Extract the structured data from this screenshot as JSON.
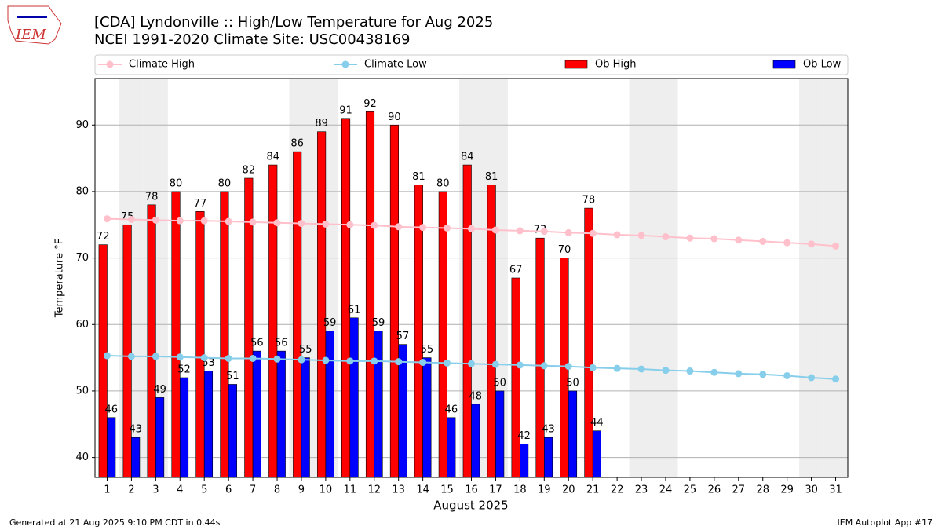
{
  "chart_data": {
    "type": "bar",
    "logo_text": "IEM",
    "title": "[CDA] Lyndonville :: High/Low Temperature for Aug 2025",
    "subtitle": "NCEI 1991-2020 Climate Site: USC00438169",
    "x_label": "August 2025",
    "y_label": "Temperature °F",
    "footer_left": "Generated at 21 Aug 2025 9:10 PM CDT in 0.44s",
    "footer_right": "IEM Autoplot App #17",
    "categories": [
      "1",
      "2",
      "3",
      "4",
      "5",
      "6",
      "7",
      "8",
      "9",
      "10",
      "11",
      "12",
      "13",
      "14",
      "15",
      "16",
      "17",
      "18",
      "19",
      "20",
      "21",
      "22",
      "23",
      "24",
      "25",
      "26",
      "27",
      "28",
      "29",
      "30",
      "31"
    ],
    "shaded_categories": [
      "2",
      "3",
      "9",
      "10",
      "16",
      "17",
      "23",
      "24",
      "30",
      "31"
    ],
    "ylim": [
      37,
      97
    ],
    "yticks": [
      40,
      50,
      60,
      70,
      80,
      90
    ],
    "grid": true,
    "legend": "top",
    "series": [
      {
        "name": "Climate High",
        "kind": "line",
        "color": "#ffc0cb",
        "values": [
          75.9,
          75.8,
          75.7,
          75.6,
          75.6,
          75.5,
          75.4,
          75.3,
          75.2,
          75.1,
          75.0,
          74.9,
          74.7,
          74.6,
          74.5,
          74.4,
          74.2,
          74.1,
          74.0,
          73.8,
          73.7,
          73.5,
          73.4,
          73.2,
          73.0,
          72.9,
          72.7,
          72.5,
          72.3,
          72.1,
          71.8
        ]
      },
      {
        "name": "Climate Low",
        "kind": "line",
        "color": "#87ceeb",
        "values": [
          55.3,
          55.2,
          55.2,
          55.1,
          55.0,
          54.9,
          54.9,
          54.8,
          54.7,
          54.6,
          54.5,
          54.5,
          54.4,
          54.3,
          54.2,
          54.1,
          54.0,
          53.9,
          53.8,
          53.7,
          53.5,
          53.4,
          53.3,
          53.1,
          53.0,
          52.8,
          52.6,
          52.5,
          52.3,
          52.0,
          51.8
        ]
      },
      {
        "name": "Ob High",
        "kind": "bar",
        "color": "#ff0000",
        "values": [
          72,
          75,
          78,
          80,
          77,
          80,
          82,
          84,
          86,
          89,
          91,
          92,
          90,
          81,
          80,
          84,
          81,
          67,
          73,
          70,
          77.5,
          null,
          null,
          null,
          null,
          null,
          null,
          null,
          null,
          null,
          null
        ],
        "value_labels": [
          "72",
          "75",
          "78",
          "80",
          "77",
          "80",
          "82",
          "84",
          "86",
          "89",
          "91",
          "92",
          "90",
          "81",
          "80",
          "84",
          "81",
          "67",
          "73",
          "70",
          "78",
          null,
          null,
          null,
          null,
          null,
          null,
          null,
          null,
          null,
          null
        ]
      },
      {
        "name": "Ob Low",
        "kind": "bar",
        "color": "#0000ff",
        "values": [
          46,
          43,
          49,
          52,
          53,
          51,
          56,
          56,
          55,
          59,
          61,
          59,
          57,
          55,
          46,
          48,
          50,
          42,
          43,
          50,
          44,
          null,
          null,
          null,
          null,
          null,
          null,
          null,
          null,
          null,
          null
        ]
      }
    ]
  }
}
